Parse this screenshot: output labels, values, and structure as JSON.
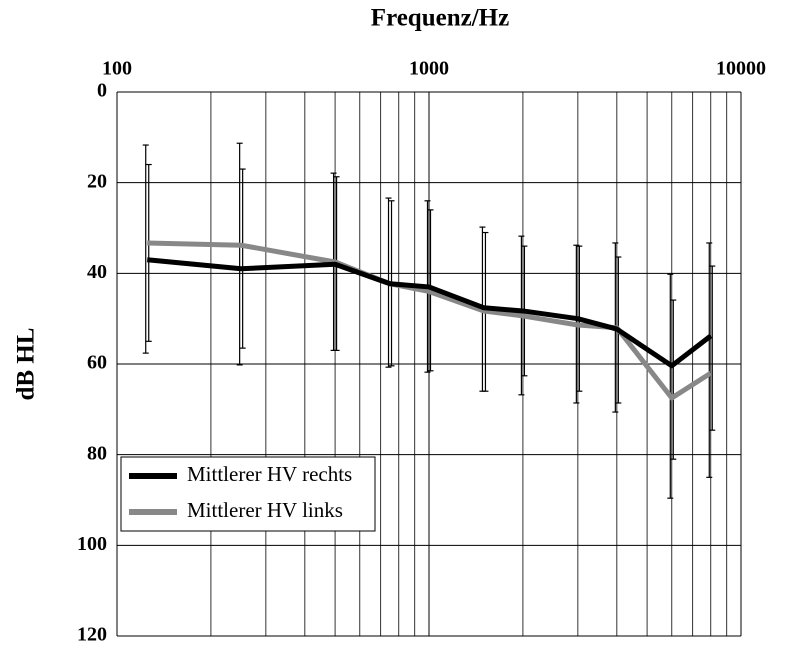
{
  "chart_data": {
    "type": "line",
    "title": "Frequenz/Hz",
    "y_label": "dB HL",
    "x": [
      125,
      250,
      500,
      750,
      1000,
      1500,
      2000,
      3000,
      4000,
      6000,
      8000
    ],
    "xscale": "log",
    "xlim": [
      100,
      10000
    ],
    "xticks": [
      100,
      1000,
      10000
    ],
    "xminor_ticks": [
      200,
      300,
      400,
      500,
      600,
      700,
      800,
      900,
      2000,
      3000,
      4000,
      5000,
      6000,
      7000,
      8000,
      9000
    ],
    "ylim": [
      0,
      120
    ],
    "y_inverted": true,
    "yticks": [
      0,
      20,
      40,
      60,
      80,
      100,
      120
    ],
    "grid": true,
    "legend": "lower left",
    "series": [
      {
        "name": "Mittlerer HV rechts",
        "color": "#000000",
        "values": [
          37,
          39,
          38,
          42.3,
          43,
          47.6,
          48.3,
          50,
          52.3,
          60.4,
          53.8
        ],
        "lower": [
          16,
          17,
          18.7,
          24,
          26,
          31,
          34,
          34,
          36.4,
          45.9,
          38.4
        ],
        "upper": [
          55,
          56.5,
          57,
          60.4,
          61.5,
          66,
          62.6,
          66,
          68.6,
          81,
          74.6
        ]
      },
      {
        "name": "Mittlerer HV links",
        "color": "#888888",
        "values": [
          33.3,
          33.8,
          37.5,
          42.3,
          44,
          48.3,
          49.4,
          51.4,
          52,
          67.5,
          62
        ],
        "lower": [
          11.7,
          11.3,
          17.9,
          23.4,
          24,
          29.8,
          31.8,
          33.8,
          33.3,
          40.2,
          33.3
        ],
        "upper": [
          57.6,
          60.2,
          57,
          60.7,
          61.8,
          66,
          66.8,
          68.6,
          70.6,
          89.6,
          85
        ]
      }
    ]
  }
}
